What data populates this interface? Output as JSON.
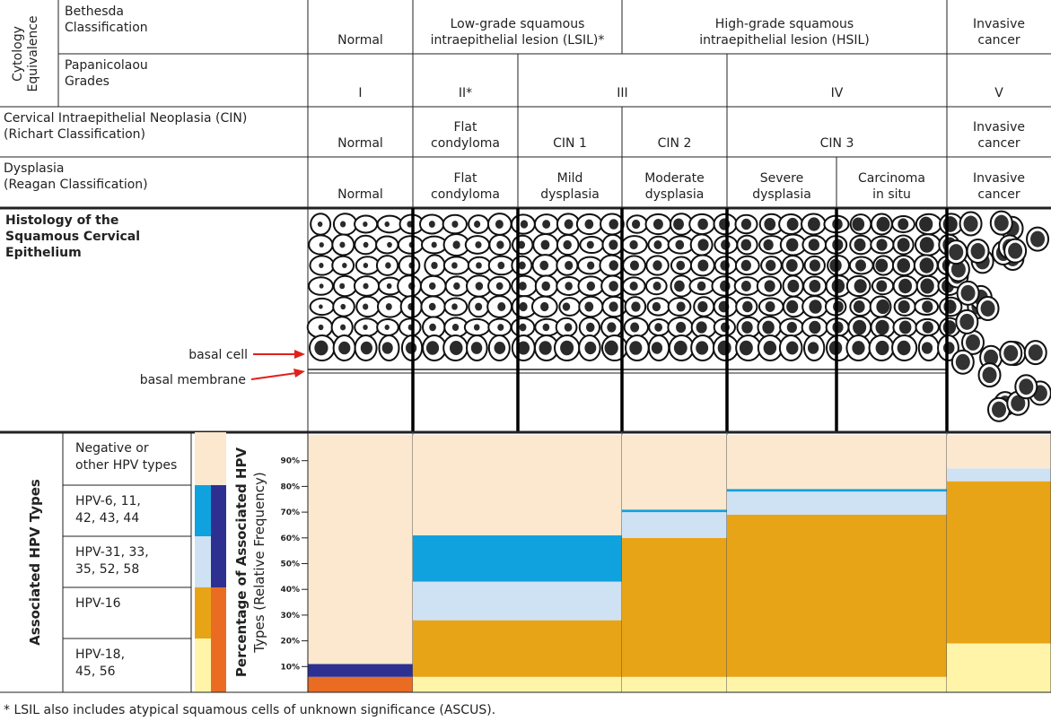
{
  "cytology_label": [
    "Cytology",
    "Equivalence"
  ],
  "rows": [
    {
      "label": [
        "Bethesda",
        "Classification"
      ],
      "cells": [
        {
          "text": [
            "Normal"
          ],
          "span": 1
        },
        {
          "text": [
            "Low-grade squamous",
            "intraepithelial lesion (LSIL)*"
          ],
          "span": 2
        },
        {
          "text": [
            "High-grade squamous",
            "intraepithelial lesion (HSIL)"
          ],
          "span": 3
        },
        {
          "text": [
            "Invasive",
            "cancer"
          ],
          "span": 1
        }
      ]
    },
    {
      "label": [
        "Papanicolaou",
        "Grades"
      ],
      "cells": [
        {
          "text": [
            "I"
          ],
          "span": 1
        },
        {
          "text": [
            "II*"
          ],
          "span": 1
        },
        {
          "text": [
            "III"
          ],
          "span": 2
        },
        {
          "text": [
            "IV"
          ],
          "span": 2
        },
        {
          "text": [
            "V"
          ],
          "span": 1
        }
      ]
    },
    {
      "label": [
        "Cervical Intraepithelial Neoplasia (CIN)",
        "(Richart Classification)"
      ],
      "cells": [
        {
          "text": [
            "Normal"
          ],
          "span": 1
        },
        {
          "text": [
            "Flat",
            "condyloma"
          ],
          "span": 1
        },
        {
          "text": [
            "CIN 1"
          ],
          "span": 1
        },
        {
          "text": [
            "CIN 2"
          ],
          "span": 1
        },
        {
          "text": [
            "CIN 3"
          ],
          "span": 2
        },
        {
          "text": [
            "Invasive",
            "cancer"
          ],
          "span": 1
        }
      ]
    },
    {
      "label": [
        "Dysplasia",
        "(Reagan Classification)"
      ],
      "cells": [
        {
          "text": [
            "Normal"
          ],
          "span": 1
        },
        {
          "text": [
            "Flat",
            "condyloma"
          ],
          "span": 1
        },
        {
          "text": [
            "Mild",
            "dysplasia"
          ],
          "span": 1
        },
        {
          "text": [
            "Moderate",
            "dysplasia"
          ],
          "span": 1
        },
        {
          "text": [
            "Severe",
            "dysplasia"
          ],
          "span": 1
        },
        {
          "text": [
            "Carcinoma",
            "in situ"
          ],
          "span": 1
        },
        {
          "text": [
            "Invasive",
            "cancer"
          ],
          "span": 1
        }
      ]
    }
  ],
  "histology": {
    "title": [
      "Histology of the",
      "Squamous Cervical",
      "Epithelium"
    ],
    "basal_cell": "basal cell",
    "basal_membrane": "basal membrane"
  },
  "hpv": {
    "title": "Associated HPV Types",
    "legend": [
      {
        "label": [
          "Negative or",
          "other HPV types"
        ],
        "color": "#fbe8cf"
      },
      {
        "label": [
          "HPV-6, 11,",
          "42, 43, 44"
        ],
        "color": "#10a2de"
      },
      {
        "label": [
          "HPV-31, 33,",
          "35, 52, 58"
        ],
        "color": "#cfe2f3"
      },
      {
        "label": [
          "HPV-16"
        ],
        "color": "#e8a417"
      },
      {
        "label": [
          "HPV-18,",
          "45, 56"
        ],
        "color": "#fff4a8"
      }
    ],
    "groups": [
      {
        "items": [
          0,
          0
        ],
        "color": "#fbe8cf"
      },
      {
        "items": [
          1,
          2
        ],
        "color": "#2d3090"
      },
      {
        "items": [
          3,
          4
        ],
        "color": "#ea6c23"
      }
    ]
  },
  "chart": {
    "type": "stacked-bar",
    "ylabel": [
      "Percentage of Associated HPV",
      "Types (Relative Frequency)"
    ],
    "ylim": [
      0,
      100
    ],
    "yticks": [
      {
        "value": 10,
        "label": "10%"
      },
      {
        "value": 20,
        "label": "20%"
      },
      {
        "value": 30,
        "label": "30%"
      },
      {
        "value": 40,
        "label": "40%"
      },
      {
        "value": 50,
        "label": "50%"
      },
      {
        "value": 60,
        "label": "60%"
      },
      {
        "value": 70,
        "label": "70%"
      },
      {
        "value": 80,
        "label": "80%"
      },
      {
        "value": 90,
        "label": "90%"
      }
    ],
    "bars": [
      {
        "span": 1,
        "segments": [
          {
            "value": 6,
            "color": "#ea6c23"
          },
          {
            "value": 5,
            "color": "#2d3090"
          },
          {
            "value": 89,
            "color": "#fbe8cf"
          }
        ]
      },
      {
        "span": 2,
        "segments": [
          {
            "value": 6,
            "color": "#fff4a8"
          },
          {
            "value": 22,
            "color": "#e8a417"
          },
          {
            "value": 15,
            "color": "#cfe2f3"
          },
          {
            "value": 18,
            "color": "#10a2de"
          },
          {
            "value": 39,
            "color": "#fbe8cf"
          }
        ]
      },
      {
        "span": 1,
        "segments": [
          {
            "value": 6,
            "color": "#fff4a8"
          },
          {
            "value": 54,
            "color": "#e8a417"
          },
          {
            "value": 10,
            "color": "#cfe2f3"
          },
          {
            "value": 1,
            "color": "#10a2de"
          },
          {
            "value": 29,
            "color": "#fbe8cf"
          }
        ]
      },
      {
        "span": 2,
        "segments": [
          {
            "value": 6,
            "color": "#fff4a8"
          },
          {
            "value": 63,
            "color": "#e8a417"
          },
          {
            "value": 9,
            "color": "#cfe2f3"
          },
          {
            "value": 1,
            "color": "#10a2de"
          },
          {
            "value": 21,
            "color": "#fbe8cf"
          }
        ]
      },
      {
        "span": 1,
        "segments": [
          {
            "value": 19,
            "color": "#fff4a8"
          },
          {
            "value": 63,
            "color": "#e8a417"
          },
          {
            "value": 5,
            "color": "#cfe2f3"
          },
          {
            "value": 13,
            "color": "#fbe8cf"
          }
        ]
      }
    ]
  },
  "footnote": "* LSIL also includes atypical squamous cells of unknown significance (ASCUS)."
}
